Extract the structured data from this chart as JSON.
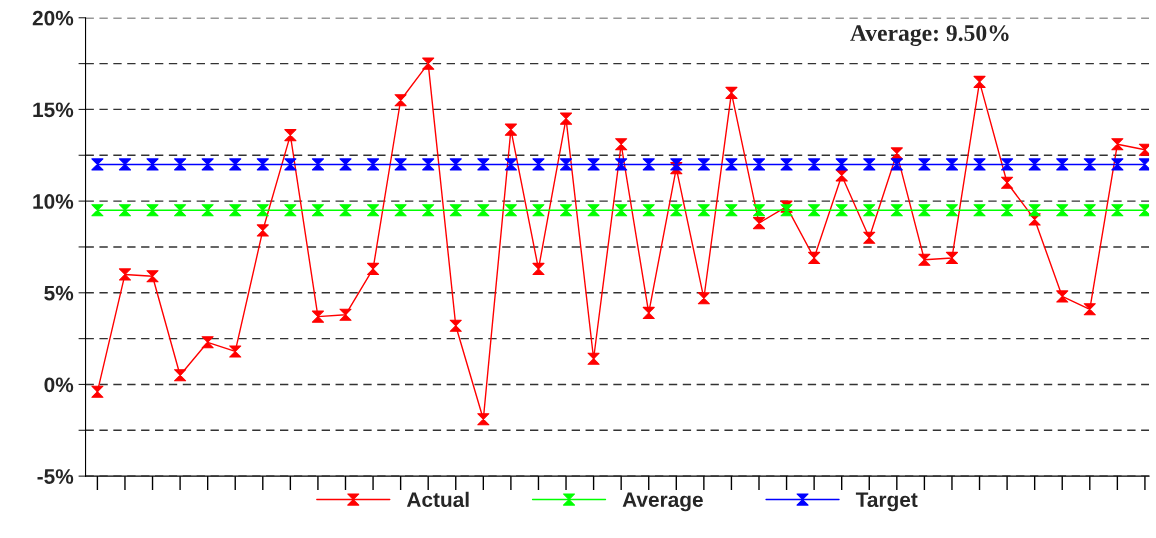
{
  "chart_data": {
    "type": "line",
    "categories": [
      null,
      null,
      null,
      null,
      null,
      null,
      null,
      null,
      null,
      null,
      null,
      null,
      null,
      null,
      null,
      null,
      null,
      null,
      null,
      null,
      null,
      null,
      null,
      null,
      null,
      null,
      null,
      null,
      null,
      null,
      null,
      null,
      null,
      null,
      null,
      null,
      null,
      null,
      null
    ],
    "series": [
      {
        "name": "Actual",
        "color": "#ff0000",
        "values": [
          -0.4,
          6.0,
          5.9,
          0.5,
          2.3,
          1.8,
          8.4,
          13.6,
          3.7,
          3.8,
          6.3,
          15.5,
          17.5,
          3.2,
          -1.9,
          13.9,
          6.3,
          14.5,
          1.4,
          13.1,
          3.9,
          11.8,
          4.7,
          15.9,
          8.8,
          9.7,
          6.9,
          11.4,
          8.0,
          12.6,
          6.8,
          6.9,
          16.5,
          11.0,
          9.0,
          4.8,
          4.1,
          13.1,
          12.8
        ]
      },
      {
        "name": "Average",
        "color": "#00ff00",
        "values": [
          9.5,
          9.5,
          9.5,
          9.5,
          9.5,
          9.5,
          9.5,
          9.5,
          9.5,
          9.5,
          9.5,
          9.5,
          9.5,
          9.5,
          9.5,
          9.5,
          9.5,
          9.5,
          9.5,
          9.5,
          9.5,
          9.5,
          9.5,
          9.5,
          9.5,
          9.5,
          9.5,
          9.5,
          9.5,
          9.5,
          9.5,
          9.5,
          9.5,
          9.5,
          9.5,
          9.5,
          9.5,
          9.5,
          9.5
        ]
      },
      {
        "name": "Target",
        "color": "#0000ff",
        "values": [
          12,
          12,
          12,
          12,
          12,
          12,
          12,
          12,
          12,
          12,
          12,
          12,
          12,
          12,
          12,
          12,
          12,
          12,
          12,
          12,
          12,
          12,
          12,
          12,
          12,
          12,
          12,
          12,
          12,
          12,
          12,
          12,
          12,
          12,
          12,
          12,
          12,
          12,
          12
        ]
      }
    ],
    "ylim": [
      -5,
      20
    ],
    "yticks": [
      {
        "value": -5,
        "label": "-5%"
      },
      {
        "value": -2.5,
        "label": null
      },
      {
        "value": 0,
        "label": "0%"
      },
      {
        "value": 2.5,
        "label": null
      },
      {
        "value": 5,
        "label": "5%"
      },
      {
        "value": 7.5,
        "label": null
      },
      {
        "value": 10,
        "label": "10%"
      },
      {
        "value": 12.5,
        "label": null
      },
      {
        "value": 15,
        "label": "15%"
      },
      {
        "value": 17.5,
        "label": null
      },
      {
        "value": 20,
        "label": "20%"
      }
    ],
    "grid": "y",
    "legend": "bottom",
    "marker": "diamond",
    "line_style": "solid",
    "annotations": [
      "Average: 9.50%"
    ]
  }
}
